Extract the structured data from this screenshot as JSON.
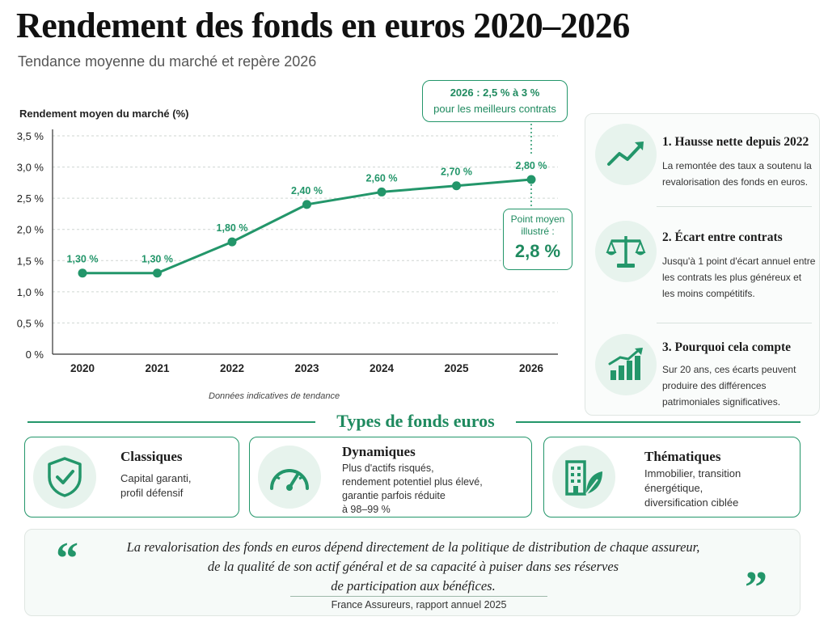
{
  "header": {
    "title": "Rendement des fonds en euros 2020–2026",
    "subtitle": "Tendance moyenne du marché et repère 2026"
  },
  "chart_data": {
    "type": "line",
    "title": "",
    "ylabel": "Rendement moyen du marché (%)",
    "xlabel": "",
    "x": [
      "2020",
      "2021",
      "2022",
      "2023",
      "2024",
      "2025",
      "2026"
    ],
    "series": [
      {
        "values": [
          1.3,
          1.3,
          1.8,
          2.4,
          2.6,
          2.7,
          2.8
        ]
      }
    ],
    "data_labels": [
      "1,30 %",
      "1,30 %",
      "1,80 %",
      "2,40 %",
      "2,60 %",
      "2,70 %",
      "2,80 %"
    ],
    "y_ticks": [
      0,
      0.5,
      1.0,
      1.5,
      2.0,
      2.5,
      3.0,
      3.5
    ],
    "y_tick_labels": [
      "0 %",
      "0,5 %",
      "1,0 %",
      "1,5 %",
      "2,0 %",
      "2,5 %",
      "3,0 %",
      "3,5 %"
    ],
    "ylim": [
      0,
      3.5
    ],
    "grid": true,
    "legend": "none",
    "color": "#23966a",
    "note": "Données indicatives de tendance",
    "annotations": {
      "top_line1": "2026 : 2,5 % à 3 %",
      "top_line2": "pour les meilleurs contrats",
      "mid_line1": "Point moyen",
      "mid_line2": "illustré :",
      "mid_value": "2,8 %"
    }
  },
  "panel": {
    "items": [
      {
        "title": "1. Hausse nette depuis 2022",
        "text": "La remontée des taux a soutenu la revalorisation des fonds en euros.",
        "icon": "trend-up-icon"
      },
      {
        "title": "2. Écart entre contrats",
        "text": "Jusqu'à 1 point d'écart annuel entre les contrats les plus généreux et les moins compétitifs.",
        "icon": "scales-icon"
      },
      {
        "title": "3. Pourquoi cela compte",
        "text": "Sur 20 ans, ces écarts peuvent produire des différences patrimoniales significatives.",
        "icon": "bar-growth-icon"
      }
    ]
  },
  "types": {
    "title": "Types de fonds euros",
    "cards": [
      {
        "title": "Classiques",
        "text": "Capital garanti,\nprofil défensif",
        "icon": "shield-check-icon"
      },
      {
        "title": "Dynamiques",
        "text": "Plus d'actifs risqués,\nrendement potentiel plus élevé,\ngarantie parfois réduite\nà 98–99 %",
        "icon": "gauge-icon"
      },
      {
        "title": "Thématiques",
        "text": "Immobilier, transition\nénergétique,\ndiversification ciblée",
        "icon": "building-leaf-icon"
      }
    ]
  },
  "quote": {
    "open_mark": "“",
    "close_mark": "”",
    "line1": "La revalorisation des fonds en euros dépend directement de la politique de distribution de chaque assureur,",
    "line2": "de la qualité de son actif général et de sa capacité à puiser dans ses réserves",
    "line3": "de participation aux bénéfices.",
    "source": "France Assureurs, rapport annuel 2025"
  },
  "colors": {
    "accent": "#23966a",
    "accent_light": "#e7f3ed"
  }
}
